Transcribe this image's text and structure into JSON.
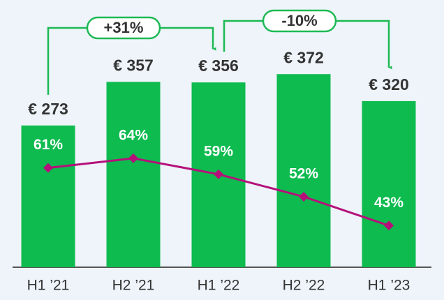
{
  "chart_data": {
    "type": "bar",
    "categories": [
      "H1 ’21",
      "H2 ’21",
      "H1 ’22",
      "H2 ’22",
      "H1 ’23"
    ],
    "ylim": [
      0,
      500
    ],
    "y2lim": [
      30,
      111
    ],
    "series": [
      {
        "color": "#0dbb4f",
        "values": [
          273,
          357,
          356,
          372,
          320
        ],
        "value_labels": [
          "€ 273",
          "€ 357",
          "€ 356",
          "€ 372",
          "€ 320"
        ]
      },
      {
        "color": "#b5107a",
        "axis": "y2",
        "values": [
          61,
          64,
          59,
          52,
          43
        ],
        "value_labels": [
          "61%",
          "64%",
          "59%",
          "52%",
          "43%"
        ]
      }
    ],
    "annotations": [
      "+31%",
      "-10%"
    ],
    "annotation_color": "#1db954"
  }
}
